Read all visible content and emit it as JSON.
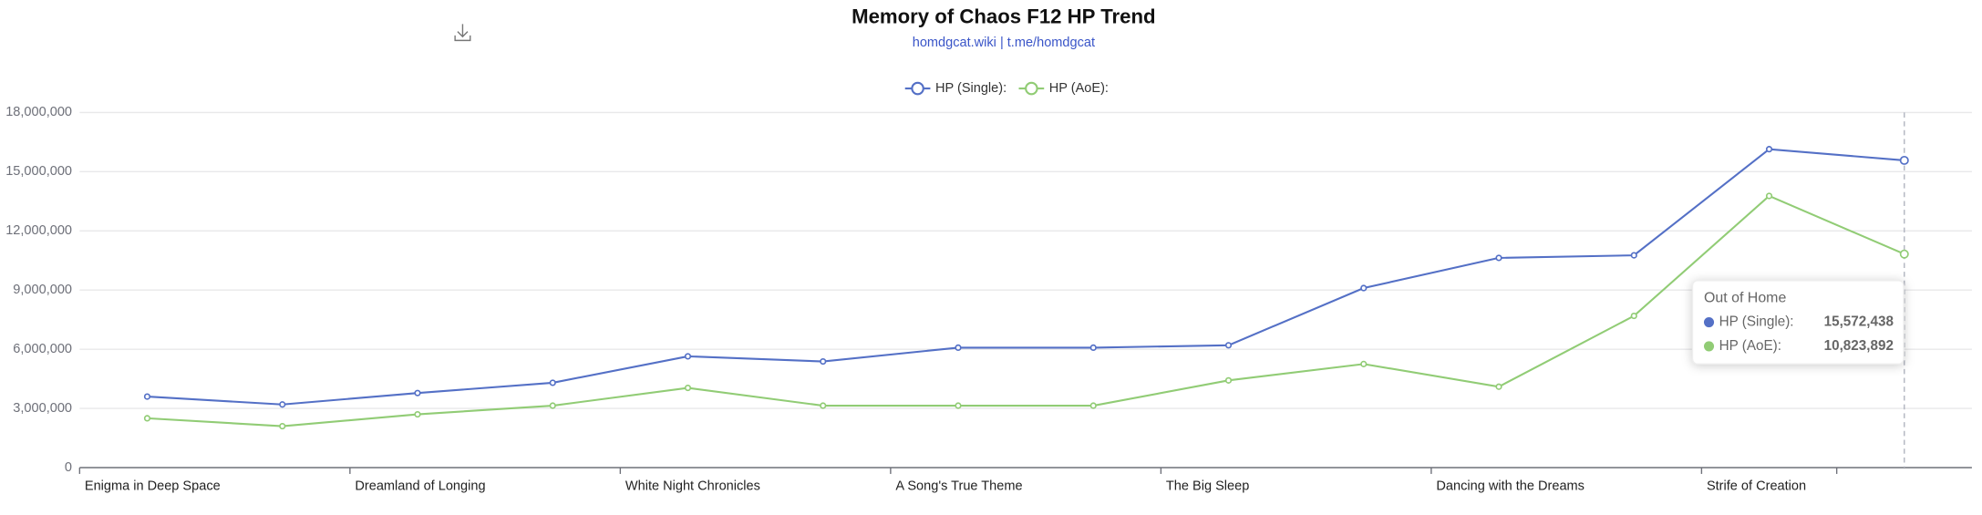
{
  "chart_data": {
    "type": "line",
    "title": "Memory of Chaos F12 HP Trend",
    "subtitle": "homdgcat.wiki | t.me/homdgcat",
    "categories": [
      "Enigma in Deep Space",
      null,
      "Dreamland of Longing",
      null,
      "White Night Chronicles",
      null,
      "A Song's True Theme",
      null,
      "The Big Sleep",
      null,
      "Dancing with the Dreams",
      null,
      "Strife of Creation",
      "Out of Home"
    ],
    "series": [
      {
        "name": "HP (Single):",
        "color": "#5470c6",
        "values": [
          3600000,
          3200000,
          3780000,
          4300000,
          5640000,
          5380000,
          6080000,
          6080000,
          6200000,
          9100000,
          10630000,
          10760000,
          16140000,
          15572438
        ],
        "value_labels": [
          null,
          null,
          null,
          null,
          null,
          null,
          null,
          null,
          null,
          null,
          null,
          null,
          null,
          "15,572,438"
        ]
      },
      {
        "name": "HP (AoE):",
        "color": "#91cc75",
        "values": [
          2500000,
          2100000,
          2700000,
          3140000,
          4040000,
          3140000,
          3140000,
          3140000,
          4420000,
          5250000,
          4100000,
          7690000,
          13770000,
          10823892
        ],
        "value_labels": [
          null,
          null,
          null,
          null,
          null,
          null,
          null,
          null,
          null,
          null,
          null,
          null,
          null,
          "10,823,892"
        ]
      }
    ],
    "ylim": [
      0,
      18000000
    ],
    "yticks": [
      0,
      {
        "value": 3000000,
        "label": "3,000,000"
      },
      {
        "value": 6000000,
        "label": "6,000,000"
      },
      {
        "value": 9000000,
        "label": "9,000,000"
      },
      {
        "value": 12000000,
        "label": "12,000,000"
      },
      {
        "value": 15000000,
        "label": "15,000,000"
      },
      {
        "value": 18000000,
        "label": "18,000,000"
      }
    ],
    "grid": true
  }
}
